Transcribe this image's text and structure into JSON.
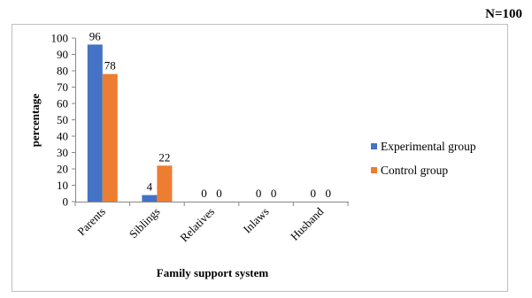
{
  "chart_data": {
    "type": "bar",
    "title": "",
    "note": "N=100",
    "xlabel": "Family support system",
    "ylabel": "percentage",
    "ylim": [
      0,
      100
    ],
    "yticks": [
      0,
      10,
      20,
      30,
      40,
      50,
      60,
      70,
      80,
      90,
      100
    ],
    "categories": [
      "Parents",
      "Siblings",
      "Relatives",
      "Inlaws",
      "Husband"
    ],
    "series": [
      {
        "name": "Experimental group",
        "color": "#4472C4",
        "values": [
          96,
          4,
          0,
          0,
          0
        ]
      },
      {
        "name": "Control group",
        "color": "#ED7D31",
        "values": [
          78,
          22,
          0,
          0,
          0
        ]
      }
    ],
    "legend_position": "right",
    "grid": false,
    "data_labels": true
  }
}
